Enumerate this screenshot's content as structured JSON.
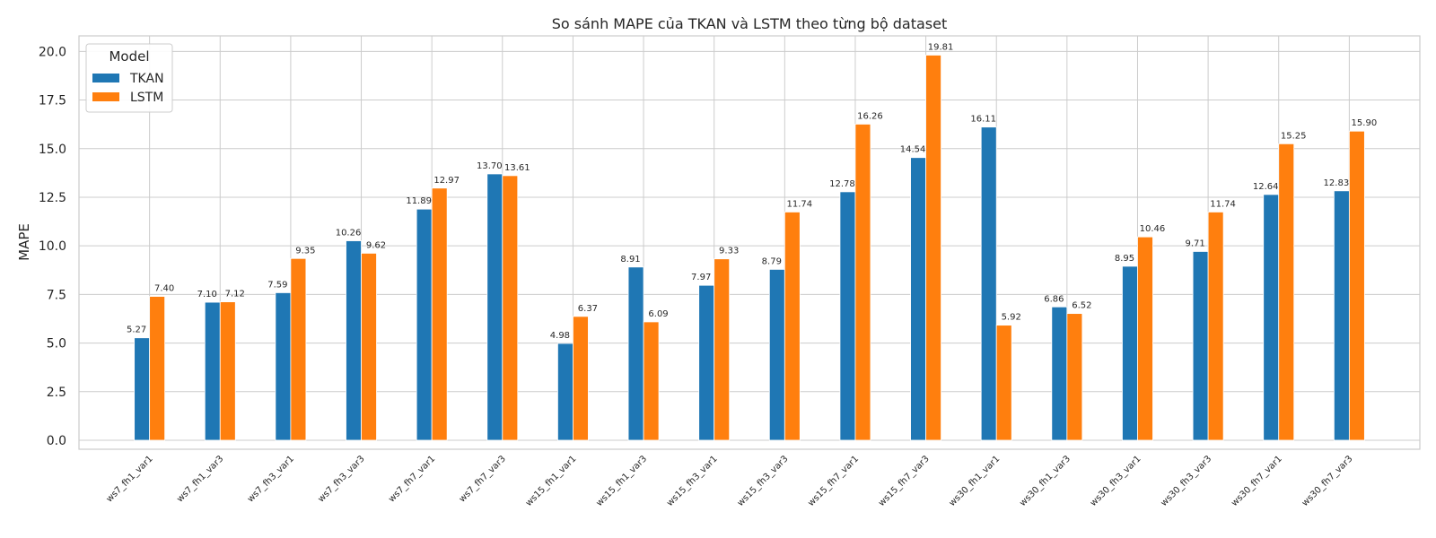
{
  "chart_data": {
    "type": "bar",
    "title": "So sánh MAPE của TKAN và LSTM theo từng bộ dataset",
    "xlabel": "",
    "ylabel": "MAPE",
    "ylim": [
      0,
      20.8
    ],
    "yticks": [
      "0.0",
      "2.5",
      "5.0",
      "7.5",
      "10.0",
      "12.5",
      "15.0",
      "17.5",
      "20.0"
    ],
    "grid": true,
    "legend": {
      "title": "Model",
      "position": "top-left"
    },
    "categories": [
      "ws7_fh1_var1",
      "ws7_fh1_var3",
      "ws7_fh3_var1",
      "ws7_fh3_var3",
      "ws7_fh7_var1",
      "ws7_fh7_var3",
      "ws15_fh1_var1",
      "ws15_fh1_var3",
      "ws15_fh3_var1",
      "ws15_fh3_var3",
      "ws15_fh7_var1",
      "ws15_fh7_var3",
      "ws30_fh1_var1",
      "ws30_fh1_var3",
      "ws30_fh3_var1",
      "ws30_fh3_var3",
      "ws30_fh7_var1",
      "ws30_fh7_var3"
    ],
    "series": [
      {
        "name": "TKAN",
        "color": "#1f77b4",
        "values": [
          5.27,
          7.1,
          7.59,
          10.26,
          11.89,
          13.7,
          4.98,
          8.91,
          7.97,
          8.79,
          12.78,
          14.54,
          16.11,
          6.86,
          8.95,
          9.71,
          12.64,
          12.83
        ],
        "labels": [
          "5.27",
          "7.10",
          "7.59",
          "10.26",
          "11.89",
          "13.70",
          "4.98",
          "8.91",
          "7.97",
          "8.79",
          "12.78",
          "14.54",
          "16.11",
          "6.86",
          "8.95",
          "9.71",
          "12.64",
          "12.83"
        ]
      },
      {
        "name": "LSTM",
        "color": "#ff7f0e",
        "values": [
          7.4,
          7.12,
          9.35,
          9.62,
          12.97,
          13.61,
          6.37,
          6.09,
          9.33,
          11.74,
          16.26,
          19.81,
          5.92,
          6.52,
          10.46,
          11.74,
          15.25,
          15.9
        ],
        "labels": [
          "7.40",
          "7.12",
          "9.35",
          "9.62",
          "12.97",
          "13.61",
          "6.37",
          "6.09",
          "9.33",
          "11.74",
          "16.26",
          "19.81",
          "5.92",
          "6.52",
          "10.46",
          "11.74",
          "15.25",
          "15.90"
        ]
      }
    ]
  }
}
